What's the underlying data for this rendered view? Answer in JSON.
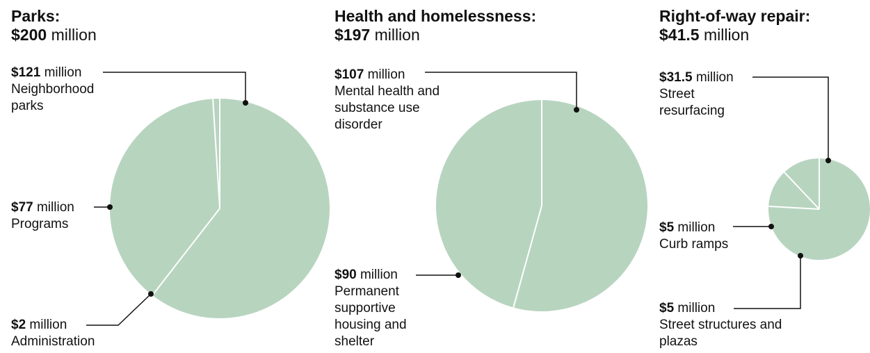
{
  "colors": {
    "fill": "#b7d4bf",
    "divider": "#ffffff",
    "leader": "#111111"
  },
  "unit_word": "million",
  "chart_data": [
    {
      "type": "pie",
      "title_name": "Parks:",
      "title_amount": "$200",
      "title_unit": "million",
      "total": 200,
      "slices": [
        {
          "value": 121,
          "amount": "$121",
          "unit": "million",
          "label": "Neighborhood parks"
        },
        {
          "value": 77,
          "amount": "$77",
          "unit": "million",
          "label": "Programs"
        },
        {
          "value": 2,
          "amount": "$2",
          "unit": "million",
          "label": "Administration"
        }
      ]
    },
    {
      "type": "pie",
      "title_name": "Health and homelessness:",
      "title_amount": "$197",
      "title_unit": "million",
      "total": 197,
      "slices": [
        {
          "value": 107,
          "amount": "$107",
          "unit": "million",
          "label": "Mental health and substance use disorder"
        },
        {
          "value": 90,
          "amount": "$90",
          "unit": "million",
          "label": "Permanent supportive housing and shelter"
        }
      ]
    },
    {
      "type": "pie",
      "title_name": "Right-of-way repair:",
      "title_amount": "$41.5",
      "title_unit": "million",
      "total": 41.5,
      "slices": [
        {
          "value": 31.5,
          "amount": "$31.5",
          "unit": "million",
          "label": "Street resurfacing"
        },
        {
          "value": 5,
          "amount": "$5",
          "unit": "million",
          "label": "Street structures and plazas"
        },
        {
          "value": 5,
          "amount": "$5",
          "unit": "million",
          "label": "Curb ramps"
        }
      ]
    }
  ]
}
